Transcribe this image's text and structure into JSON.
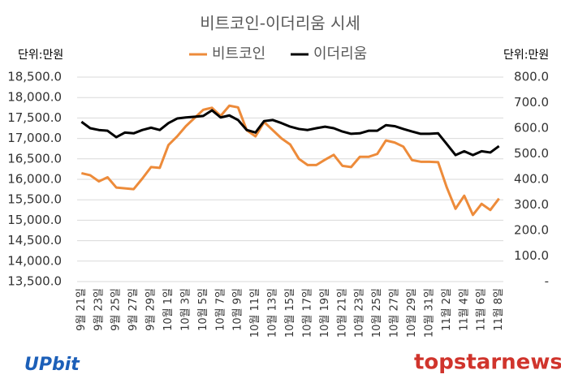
{
  "chart_data": {
    "type": "line",
    "title": "비트코인-이더리움 시세",
    "ylabel": "단위:만원",
    "y2label": "단위:만원",
    "annotations": [
      "UPbit",
      "topstarnews"
    ],
    "categories": [
      "9월 21일",
      null,
      "9월 23일",
      null,
      "9월 25일",
      null,
      "9월 27일",
      null,
      "9월 29일",
      null,
      "10월 1일",
      null,
      "10월 3일",
      null,
      "10월 5일",
      null,
      "10월 7일",
      null,
      "10월 9일",
      null,
      "10월 11일",
      null,
      "10월 13일",
      null,
      "10월 15일",
      null,
      "10월 17일",
      null,
      "10월 19일",
      null,
      "10월 21일",
      null,
      "10월 23일",
      null,
      "10월 25일",
      null,
      "10월 27일",
      null,
      "10월 29일",
      null,
      "10월 31일",
      null,
      "11월 2일",
      null,
      "11월 4일",
      null,
      "11월 6일",
      null,
      "11월 8일"
    ],
    "series": [
      {
        "name": "비트코인",
        "color": "#ed8b3a",
        "axis": "y",
        "values": [
          16150,
          16100,
          15950,
          16050,
          15800,
          15780,
          15760,
          16020,
          16300,
          16280,
          16840,
          17050,
          17300,
          17500,
          17700,
          17750,
          17550,
          17800,
          17760,
          17200,
          17050,
          17400,
          17200,
          17000,
          16850,
          16500,
          16350,
          16350,
          16480,
          16600,
          16330,
          16300,
          16550,
          16550,
          16620,
          16950,
          16900,
          16800,
          16470,
          16430,
          16430,
          16420,
          15800,
          15280,
          15600,
          15130,
          15400,
          15250,
          15530
        ]
      },
      {
        "name": "이더리움",
        "color": "#000000",
        "axis": "y2",
        "values": [
          625,
          600,
          593,
          590,
          565,
          583,
          580,
          593,
          602,
          593,
          620,
          638,
          642,
          645,
          648,
          670,
          642,
          650,
          632,
          593,
          583,
          628,
          632,
          620,
          606,
          597,
          593,
          600,
          606,
          600,
          587,
          578,
          580,
          590,
          590,
          612,
          608,
          597,
          587,
          578,
          578,
          580,
          538,
          495,
          510,
          495,
          510,
          505,
          530
        ]
      }
    ],
    "ylim": [
      13500,
      18500
    ],
    "yticks": [
      {
        "value": 13500,
        "label": "13,500.0"
      },
      {
        "value": 14000,
        "label": "14,000.0"
      },
      {
        "value": 14500,
        "label": "14,500.0"
      },
      {
        "value": 15000,
        "label": "15,000.0"
      },
      {
        "value": 15500,
        "label": "15,500.0"
      },
      {
        "value": 16000,
        "label": "16,000.0"
      },
      {
        "value": 16500,
        "label": "16,500.0"
      },
      {
        "value": 17000,
        "label": "17,000.0"
      },
      {
        "value": 17500,
        "label": "17,500.0"
      },
      {
        "value": 18000,
        "label": "18,000.0"
      },
      {
        "value": 18500,
        "label": "18,500.0"
      }
    ],
    "y2lim": [
      0,
      800
    ],
    "y2ticks": [
      {
        "value": 0,
        "label": "-"
      },
      {
        "value": 100,
        "label": "100.0"
      },
      {
        "value": 200,
        "label": "200.0"
      },
      {
        "value": 300,
        "label": "300.0"
      },
      {
        "value": 400,
        "label": "400.0"
      },
      {
        "value": 500,
        "label": "500.0"
      },
      {
        "value": 600,
        "label": "600.0"
      },
      {
        "value": 700,
        "label": "700.0"
      },
      {
        "value": 800,
        "label": "800.0"
      }
    ],
    "grid": true
  }
}
